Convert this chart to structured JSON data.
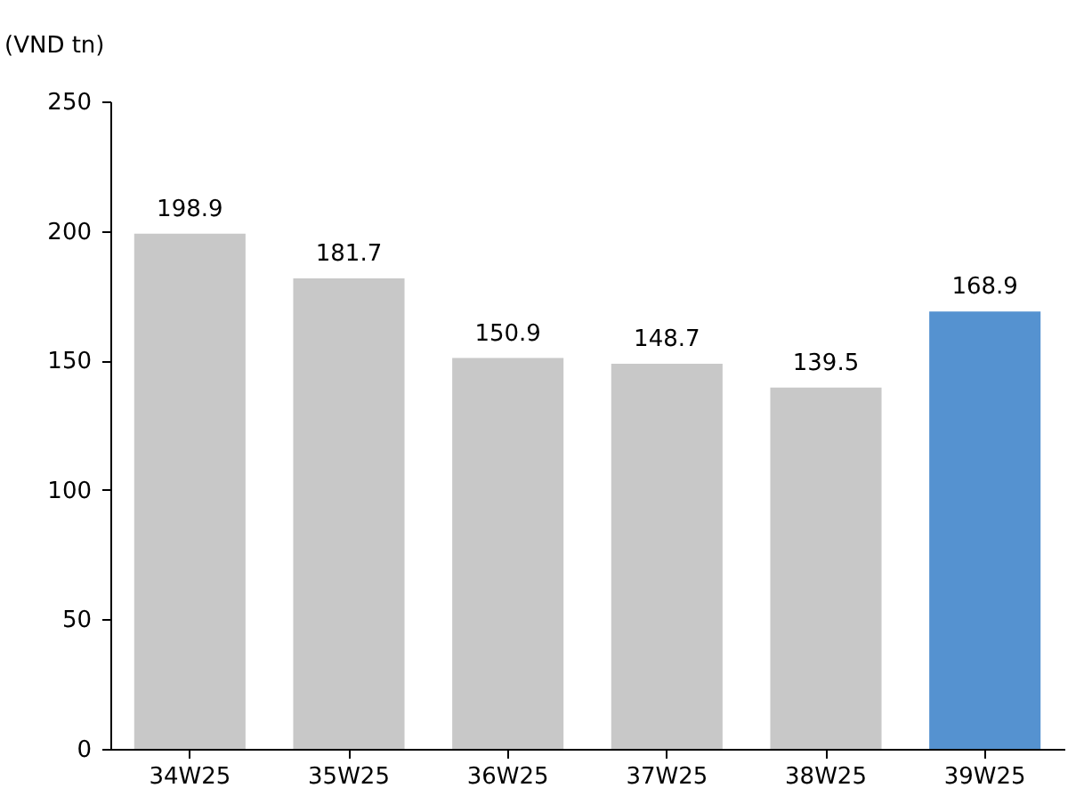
{
  "chart_data": {
    "type": "bar",
    "ylabel": "(VND tn)",
    "categories": [
      "34W25",
      "35W25",
      "36W25",
      "37W25",
      "38W25",
      "39W25"
    ],
    "values": [
      198.9,
      181.7,
      150.9,
      148.7,
      139.5,
      168.9
    ],
    "colors": [
      "#c8c8c8",
      "#c8c8c8",
      "#c8c8c8",
      "#c8c8c8",
      "#c8c8c8",
      "#5592d0"
    ],
    "ylim": [
      0,
      250
    ],
    "yticks": [
      0,
      50,
      100,
      150,
      200,
      250
    ],
    "grid": false,
    "data_labels": true
  }
}
